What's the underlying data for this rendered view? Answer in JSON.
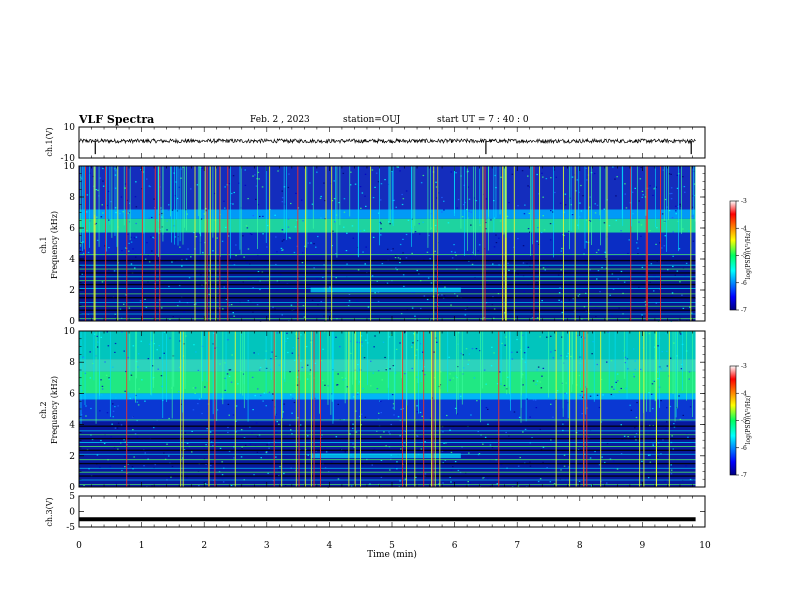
{
  "header": {
    "title": "VLF Spectra",
    "date": "Feb. 2 , 2023",
    "station": "station=OUJ",
    "start": "start UT =  7 : 40 : 0"
  },
  "chart_data": [
    {
      "type": "line",
      "name": "ch1-waveform",
      "ylabel": "ch.1(V)",
      "ylim": [
        -10,
        10
      ],
      "yticks": [
        "10",
        "-10"
      ],
      "baseline": 1,
      "spikes_min": [
        0.26,
        6.5,
        9.78
      ]
    },
    {
      "type": "heatmap",
      "name": "ch1-spectrogram",
      "ylabel": [
        "ch.1",
        "Frequency (kHz)"
      ],
      "ylim": [
        0,
        10
      ],
      "yticks": [
        "0",
        "2",
        "4",
        "6",
        "8",
        "10"
      ],
      "colorbar": {
        "label": "log(PSD)(V²/Hz)",
        "ticks": [
          "-3",
          "-4",
          "-5",
          "-6",
          "-7"
        ],
        "range": [
          -7,
          -3
        ]
      }
    },
    {
      "type": "heatmap",
      "name": "ch2-spectrogram",
      "ylabel": [
        "ch.2",
        "Frequency (kHz)"
      ],
      "ylim": [
        0,
        10
      ],
      "yticks": [
        "0",
        "2",
        "4",
        "6",
        "8",
        "10"
      ],
      "colorbar": {
        "label": "log(PSD)(V²/Hz)",
        "ticks": [
          "-3",
          "-4",
          "-5",
          "-6",
          "-7"
        ],
        "range": [
          -7,
          -3
        ]
      }
    },
    {
      "type": "line",
      "name": "ch3-waveform",
      "ylabel": "ch.3(V)",
      "ylim": [
        -5,
        5
      ],
      "yticks": [
        "5",
        "0",
        "-5"
      ],
      "baseline": -2.5
    }
  ],
  "xaxis": {
    "label": "Time (min)",
    "range": [
      0,
      10
    ],
    "ticks": [
      "0",
      "1",
      "2",
      "3",
      "4",
      "5",
      "6",
      "7",
      "8",
      "9",
      "10"
    ]
  },
  "colors": {
    "low": "#000080",
    "mid": "#00ff80",
    "high": "#ff0000"
  }
}
